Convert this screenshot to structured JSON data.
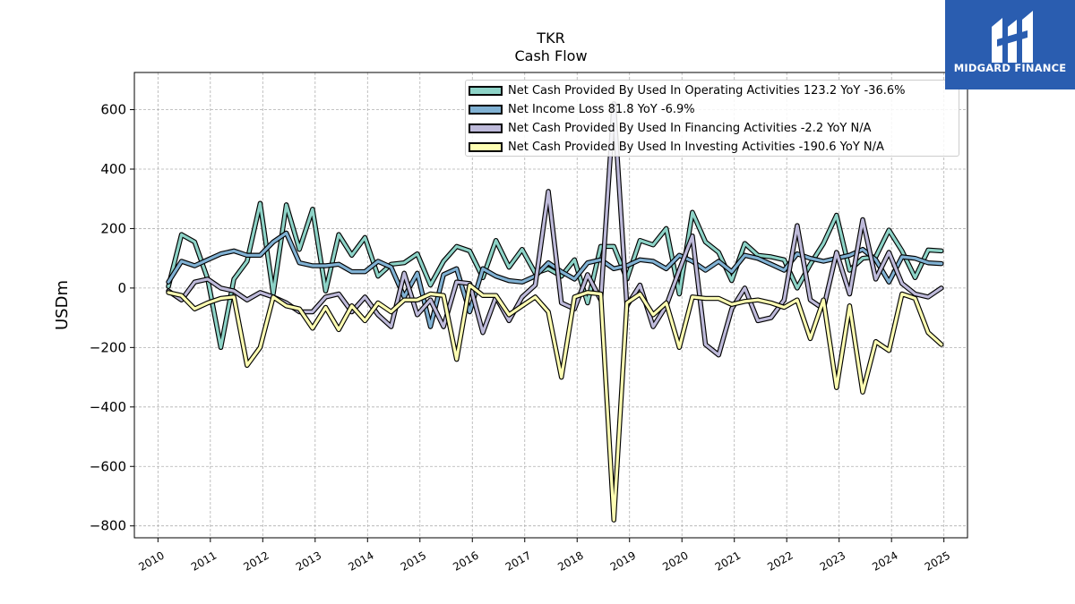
{
  "chart_data": {
    "type": "line",
    "title": "TKR",
    "subtitle": "Cash Flow",
    "ylabel": "USDm",
    "xlabel": "",
    "ylim": [
      -840,
      725
    ],
    "xlim": [
      2009.55,
      2025.45
    ],
    "yticks": [
      -800,
      -600,
      -400,
      -200,
      0,
      200,
      400,
      600
    ],
    "ytick_labels": [
      "−800",
      "−600",
      "−400",
      "−200",
      "0",
      "200",
      "400",
      "600"
    ],
    "xticks": [
      2010,
      2011,
      2012,
      2013,
      2014,
      2015,
      2016,
      2017,
      2018,
      2019,
      2020,
      2021,
      2022,
      2023,
      2024,
      2025
    ],
    "xtick_labels": [
      "2010",
      "2011",
      "2012",
      "2013",
      "2014",
      "2015",
      "2016",
      "2017",
      "2018",
      "2019",
      "2020",
      "2021",
      "2022",
      "2023",
      "2024",
      "2025"
    ],
    "grid": true,
    "legend_position": "top-right",
    "x": [
      2010.2,
      2010.45,
      2010.7,
      2010.95,
      2011.2,
      2011.45,
      2011.7,
      2011.95,
      2012.2,
      2012.45,
      2012.7,
      2012.95,
      2013.2,
      2013.45,
      2013.7,
      2013.95,
      2014.2,
      2014.45,
      2014.7,
      2014.95,
      2015.2,
      2015.45,
      2015.7,
      2015.95,
      2016.2,
      2016.45,
      2016.7,
      2016.95,
      2017.2,
      2017.45,
      2017.7,
      2017.95,
      2018.2,
      2018.45,
      2018.7,
      2018.95,
      2019.2,
      2019.45,
      2019.7,
      2019.95,
      2020.2,
      2020.45,
      2020.7,
      2020.95,
      2021.2,
      2021.45,
      2021.7,
      2021.95,
      2022.2,
      2022.45,
      2022.7,
      2022.95,
      2023.2,
      2023.45,
      2023.7,
      2023.95,
      2024.2,
      2024.45,
      2024.7,
      2024.95
    ],
    "series": [
      {
        "name": "Net Cash Provided By Used In Operating Activities",
        "legend_label": "Net Cash Provided By Used In Operating Activities  123.2 YoY -36.6%",
        "color": "#8dd3c7",
        "values": [
          5,
          180,
          155,
          30,
          -200,
          30,
          90,
          285,
          -20,
          280,
          130,
          265,
          -10,
          180,
          110,
          170,
          40,
          80,
          85,
          115,
          10,
          90,
          140,
          125,
          35,
          160,
          70,
          130,
          50,
          65,
          40,
          95,
          -50,
          140,
          140,
          30,
          160,
          145,
          200,
          -20,
          255,
          155,
          120,
          25,
          150,
          110,
          105,
          95,
          0,
          80,
          150,
          245,
          60,
          100,
          105,
          195,
          125,
          35,
          128,
          125
        ]
      },
      {
        "name": "Net Income Loss",
        "legend_label": "Net Income Loss  81.8 YoY -6.9%",
        "color": "#80b1d3",
        "values": [
          20,
          90,
          75,
          95,
          115,
          125,
          110,
          110,
          155,
          185,
          85,
          75,
          75,
          80,
          55,
          55,
          90,
          70,
          -30,
          50,
          -130,
          45,
          65,
          -80,
          65,
          40,
          25,
          20,
          40,
          85,
          55,
          30,
          85,
          95,
          65,
          75,
          95,
          90,
          65,
          110,
          90,
          60,
          90,
          55,
          110,
          100,
          80,
          60,
          115,
          100,
          90,
          100,
          110,
          130,
          95,
          20,
          105,
          100,
          85,
          82
        ]
      },
      {
        "name": "Net Cash Provided By Used In Financing Activities",
        "legend_label": "Net Cash Provided By Used In Financing Activities  -2.2 YoY N/A",
        "color": "#bebada",
        "values": [
          -10,
          -40,
          20,
          30,
          0,
          -10,
          -40,
          -15,
          -30,
          -50,
          -80,
          -80,
          -30,
          -20,
          -80,
          -30,
          -90,
          -130,
          50,
          -90,
          -40,
          -130,
          20,
          15,
          -150,
          -30,
          -110,
          -30,
          10,
          325,
          -50,
          -70,
          45,
          -40,
          620,
          -60,
          10,
          -130,
          -60,
          60,
          175,
          -190,
          -225,
          -70,
          0,
          -110,
          -100,
          -40,
          210,
          -40,
          -70,
          120,
          -20,
          230,
          30,
          120,
          15,
          -20,
          -30,
          0
        ]
      },
      {
        "name": "Net Cash Provided By Used In Investing Activities",
        "legend_label": "Net Cash Provided By Used In Investing Activities  -190.6 YoY N/A",
        "color": "#ffffb3",
        "values": [
          -15,
          -25,
          -70,
          -50,
          -35,
          -30,
          -260,
          -200,
          -30,
          -60,
          -70,
          -135,
          -65,
          -140,
          -60,
          -110,
          -50,
          -80,
          -40,
          -40,
          -20,
          -25,
          -240,
          10,
          -25,
          -25,
          -90,
          -60,
          -30,
          -80,
          -300,
          -30,
          -15,
          -20,
          -780,
          -50,
          -20,
          -90,
          -50,
          -200,
          -30,
          -35,
          -35,
          -55,
          -45,
          -40,
          -50,
          -65,
          -40,
          -170,
          -40,
          -335,
          -60,
          -350,
          -180,
          -210,
          -20,
          -35,
          -150,
          -190
        ]
      }
    ]
  },
  "logo": {
    "brand": "MIDGARD FINANCE"
  }
}
